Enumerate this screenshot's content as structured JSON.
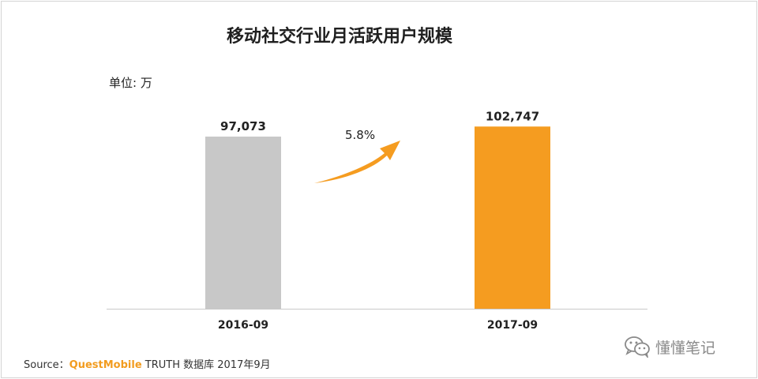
{
  "title": "移动社交行业月活跃用户规模",
  "unit_label": "单位: 万",
  "colors": {
    "bar_2016": "#c8c8c8",
    "bar_2017": "#f59c20",
    "arrow": "#f59c20",
    "axis": "#c9c9c9"
  },
  "chart_data": {
    "type": "bar",
    "title": "移动社交行业月活跃用户规模",
    "unit": "单位: 万",
    "categories": [
      "2016-09",
      "2017-09"
    ],
    "values": [
      97073,
      102747
    ],
    "value_labels": [
      "97,073",
      "102,747"
    ],
    "growth_label": "5.8%",
    "ylim": [
      0,
      110000
    ],
    "grid": false,
    "legend": "none"
  },
  "source": {
    "prefix": "Source：",
    "brand": "QuestMobile",
    "rest": "TRUTH 数据库 2017年9月"
  },
  "watermark": {
    "icon": "wechat-icon",
    "text": "懂懂笔记"
  }
}
